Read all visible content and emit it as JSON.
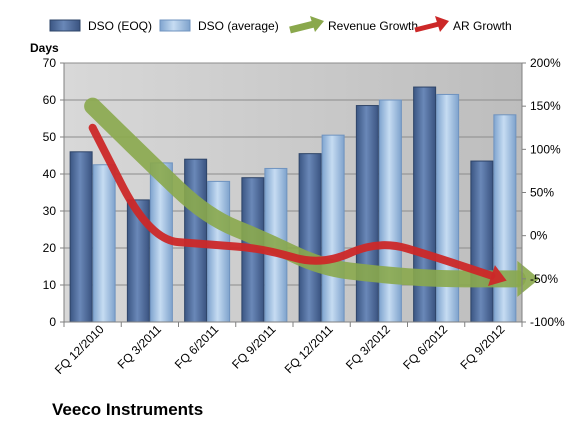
{
  "chart_data": {
    "type": "bar",
    "title": "Veeco Instruments",
    "ylabel": "Days",
    "ylim": [
      0,
      70
    ],
    "y_ticks": [
      0,
      10,
      20,
      30,
      40,
      50,
      60,
      70
    ],
    "y2lim": [
      -100,
      200
    ],
    "y2_ticks": [
      "-100%",
      "-50%",
      "0%",
      "50%",
      "100%",
      "150%",
      "200%"
    ],
    "y2_tick_values": [
      -100,
      -50,
      0,
      50,
      100,
      150,
      200
    ],
    "grid": true,
    "legend_position": "top",
    "categories": [
      "FQ 12/2010",
      "FQ 3/2011",
      "FQ 6/2011",
      "FQ 9/2011",
      "FQ 12/2011",
      "FQ 3/2012",
      "FQ 6/2012",
      "FQ 9/2012"
    ],
    "series": [
      {
        "name": "DSO (EOQ)",
        "type": "bar",
        "axis": "left",
        "color": "#4f6fa0",
        "values": [
          46,
          33,
          44,
          39,
          45.5,
          58.5,
          63.5,
          43.5
        ]
      },
      {
        "name": "DSO (average)",
        "type": "bar",
        "axis": "left",
        "color": "#9fc0e3",
        "values": [
          42.5,
          43,
          38,
          41.5,
          50.5,
          60,
          61.5,
          56
        ]
      },
      {
        "name": "Revenue Growth",
        "type": "arrow-line",
        "axis": "right",
        "color": "#8aa84c",
        "values": [
          150,
          85,
          22,
          -5,
          -37,
          -45,
          -50,
          -50
        ]
      },
      {
        "name": "AR Growth",
        "type": "arrow-line",
        "axis": "right",
        "color": "#cc2828",
        "values": [
          125,
          -5,
          -10,
          -15,
          -35,
          -5,
          -25,
          -47
        ]
      }
    ]
  }
}
